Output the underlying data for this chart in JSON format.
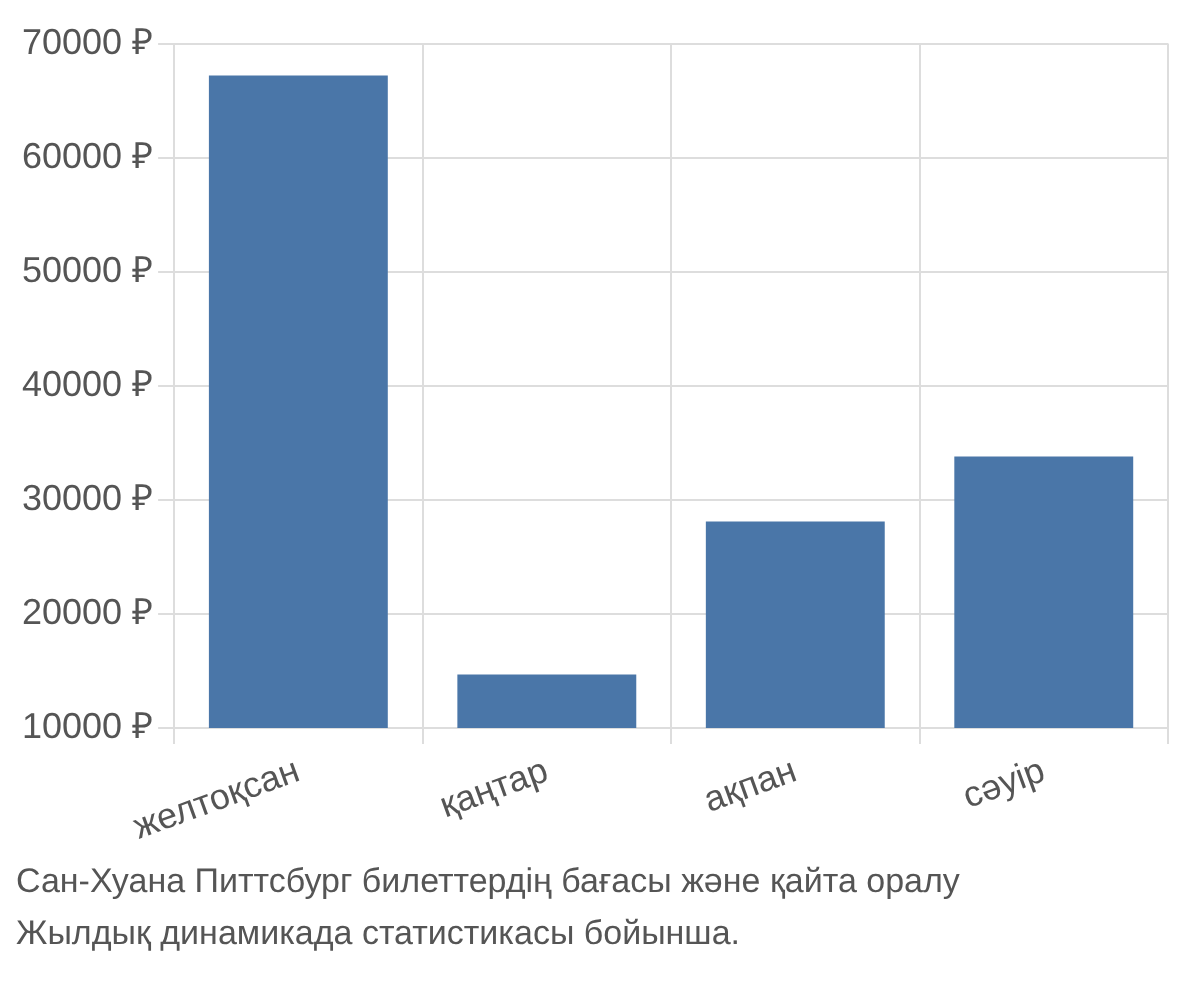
{
  "chart_data": {
    "type": "bar",
    "categories": [
      "желтоқсан",
      "қаңтар",
      "ақпан",
      "сәуір"
    ],
    "values": [
      67200,
      14700,
      28100,
      33800
    ],
    "color": "#4a76a8",
    "ylim": [
      10000,
      70000
    ],
    "yticks": [
      {
        "value": 10000,
        "label": "10000 ₽"
      },
      {
        "value": 20000,
        "label": "20000 ₽"
      },
      {
        "value": 30000,
        "label": "30000 ₽"
      },
      {
        "value": 40000,
        "label": "40000 ₽"
      },
      {
        "value": 50000,
        "label": "50000 ₽"
      },
      {
        "value": 60000,
        "label": "60000 ₽"
      },
      {
        "value": 70000,
        "label": "70000 ₽"
      }
    ],
    "grid": true,
    "legend": false,
    "annotations": [
      "Сан-Хуана Питтсбург билеттердің бағасы және қайта оралу",
      "Жылдық динамикада статистикасы бойынша."
    ]
  }
}
